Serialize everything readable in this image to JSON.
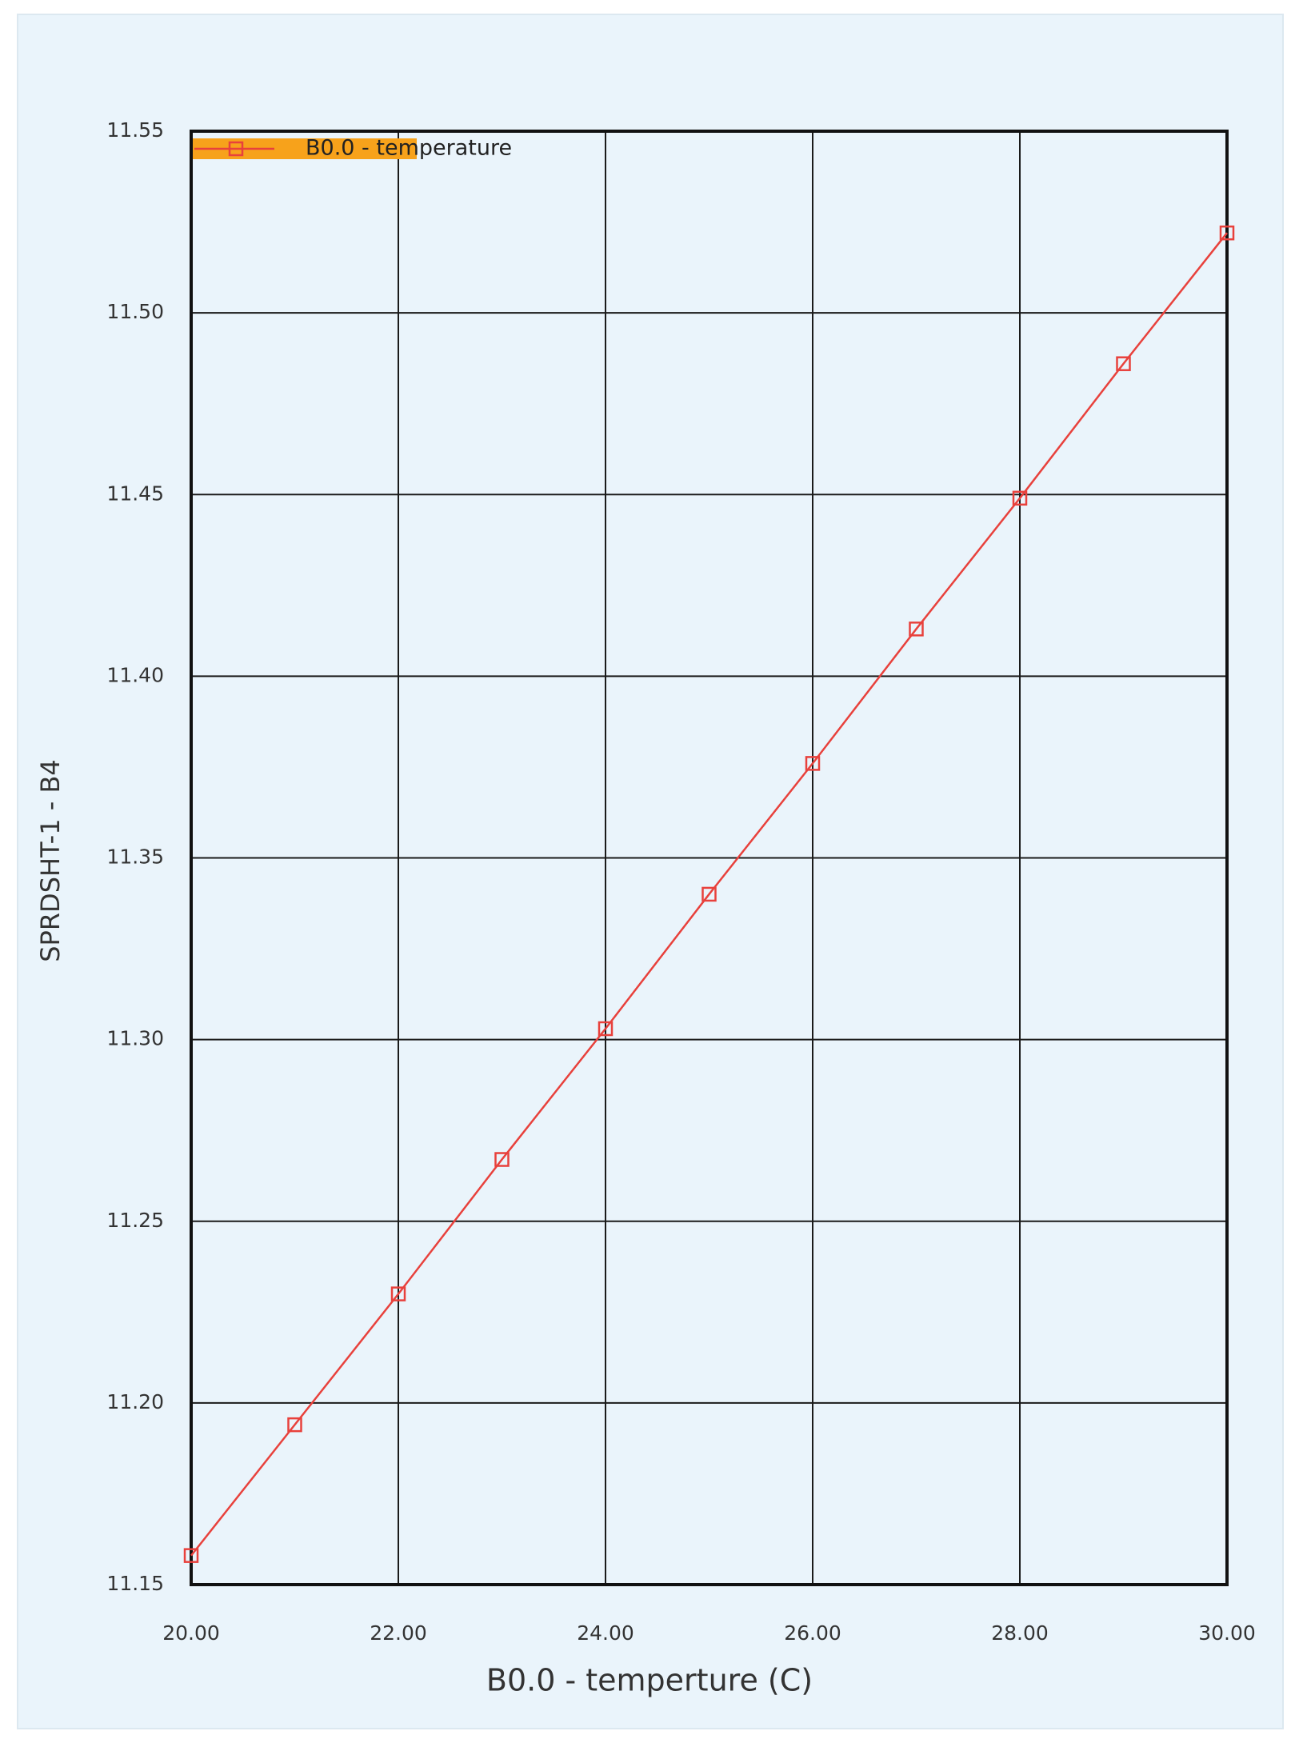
{
  "chart_data": {
    "type": "line",
    "xlabel": "B0.0 - temperture (C)",
    "ylabel": "SPRDSHT-1 - B4",
    "x": [
      20,
      21,
      22,
      23,
      24,
      25,
      26,
      27,
      28,
      29,
      30
    ],
    "series": [
      {
        "name": "B0.0 - temperature",
        "color": "#e8413c",
        "values": [
          11.158,
          11.194,
          11.23,
          11.267,
          11.303,
          11.34,
          11.376,
          11.413,
          11.449,
          11.486,
          11.522
        ]
      }
    ],
    "xlim": [
      20,
      30
    ],
    "xticks": [
      {
        "value": 20,
        "label": "20.00"
      },
      {
        "value": 22,
        "label": "22.00"
      },
      {
        "value": 24,
        "label": "24.00"
      },
      {
        "value": 26,
        "label": "26.00"
      },
      {
        "value": 28,
        "label": "28.00"
      },
      {
        "value": 30,
        "label": "30.00"
      }
    ],
    "ylim": [
      11.15,
      11.55
    ],
    "yticks": [
      11.15,
      {
        "value": 11.2,
        "label": "11.20"
      },
      11.25,
      {
        "value": 11.3,
        "label": "11.30"
      },
      11.35,
      {
        "value": 11.4,
        "label": "11.40"
      },
      11.45,
      {
        "value": 11.5,
        "label": "11.50"
      },
      11.55
    ],
    "grid": true,
    "legend": "upper left"
  }
}
